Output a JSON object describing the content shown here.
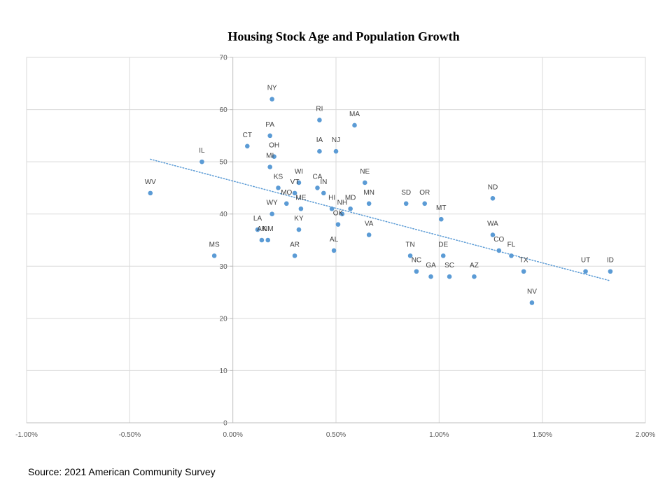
{
  "title": "Housing Stock Age and Population Growth",
  "source": "Source: 2021 American Community Survey",
  "chart_data": {
    "type": "scatter",
    "title": "Housing Stock Age and Population Growth",
    "xlabel": "",
    "ylabel": "",
    "xlim": [
      -0.01,
      0.02
    ],
    "ylim": [
      0,
      70
    ],
    "x_ticks": [
      -0.01,
      -0.005,
      0,
      0.005,
      0.01,
      0.015,
      0.02
    ],
    "x_tick_labels": [
      "-1.00%",
      "-0.50%",
      "0.00%",
      "0.50%",
      "1.00%",
      "1.50%",
      "2.00%"
    ],
    "y_ticks": [
      0,
      10,
      20,
      30,
      40,
      50,
      60,
      70
    ],
    "y_tick_labels": [
      "0",
      "10",
      "20",
      "30",
      "40",
      "50",
      "60",
      "70"
    ],
    "grid": true,
    "legend": "none",
    "point_color": "#5b9bd5",
    "trendline": {
      "type": "linear",
      "style": "dotted",
      "color": "#5b9bd5",
      "x": [
        -0.004,
        0.0183
      ],
      "y": [
        50.5,
        27.2
      ]
    },
    "points": [
      {
        "label": "NY",
        "x": 0.0019,
        "y": 62
      },
      {
        "label": "RI",
        "x": 0.0042,
        "y": 58
      },
      {
        "label": "MA",
        "x": 0.0059,
        "y": 57
      },
      {
        "label": "PA",
        "x": 0.0018,
        "y": 55
      },
      {
        "label": "CT",
        "x": 0.0007,
        "y": 53
      },
      {
        "label": "OH",
        "x": 0.002,
        "y": 51
      },
      {
        "label": "IA",
        "x": 0.0042,
        "y": 52
      },
      {
        "label": "NJ",
        "x": 0.005,
        "y": 52
      },
      {
        "label": "IL",
        "x": -0.0015,
        "y": 50
      },
      {
        "label": "MI",
        "x": 0.0018,
        "y": 49
      },
      {
        "label": "WI",
        "x": 0.0032,
        "y": 46
      },
      {
        "label": "CA",
        "x": 0.0041,
        "y": 45
      },
      {
        "label": "IN",
        "x": 0.0044,
        "y": 44
      },
      {
        "label": "KS",
        "x": 0.0022,
        "y": 45
      },
      {
        "label": "VT",
        "x": 0.003,
        "y": 44
      },
      {
        "label": "NE",
        "x": 0.0064,
        "y": 46
      },
      {
        "label": "WV",
        "x": -0.004,
        "y": 44
      },
      {
        "label": "MO",
        "x": 0.0026,
        "y": 42
      },
      {
        "label": "ME",
        "x": 0.0033,
        "y": 41
      },
      {
        "label": "HI",
        "x": 0.0048,
        "y": 41
      },
      {
        "label": "MD",
        "x": 0.0057,
        "y": 41
      },
      {
        "label": "MN",
        "x": 0.0066,
        "y": 42
      },
      {
        "label": "SD",
        "x": 0.0084,
        "y": 42
      },
      {
        "label": "OR",
        "x": 0.0093,
        "y": 42
      },
      {
        "label": "ND",
        "x": 0.0126,
        "y": 43
      },
      {
        "label": "WY",
        "x": 0.0019,
        "y": 40
      },
      {
        "label": "NH",
        "x": 0.0053,
        "y": 40
      },
      {
        "label": "MT",
        "x": 0.0101,
        "y": 39
      },
      {
        "label": "OK",
        "x": 0.0051,
        "y": 38
      },
      {
        "label": "LA",
        "x": 0.0012,
        "y": 37
      },
      {
        "label": "KY",
        "x": 0.0032,
        "y": 37
      },
      {
        "label": "AK",
        "x": 0.0014,
        "y": 35
      },
      {
        "label": "NM",
        "x": 0.0017,
        "y": 35
      },
      {
        "label": "VA",
        "x": 0.0066,
        "y": 36
      },
      {
        "label": "WA",
        "x": 0.0126,
        "y": 36
      },
      {
        "label": "AL",
        "x": 0.0049,
        "y": 33
      },
      {
        "label": "CO",
        "x": 0.0129,
        "y": 33
      },
      {
        "label": "MS",
        "x": -0.0009,
        "y": 32
      },
      {
        "label": "AR",
        "x": 0.003,
        "y": 32
      },
      {
        "label": "TN",
        "x": 0.0086,
        "y": 32
      },
      {
        "label": "DE",
        "x": 0.0102,
        "y": 32
      },
      {
        "label": "FL",
        "x": 0.0135,
        "y": 32
      },
      {
        "label": "NC",
        "x": 0.0089,
        "y": 29
      },
      {
        "label": "TX",
        "x": 0.0141,
        "y": 29
      },
      {
        "label": "UT",
        "x": 0.0171,
        "y": 29
      },
      {
        "label": "ID",
        "x": 0.0183,
        "y": 29
      },
      {
        "label": "GA",
        "x": 0.0096,
        "y": 28
      },
      {
        "label": "SC",
        "x": 0.0105,
        "y": 28
      },
      {
        "label": "AZ",
        "x": 0.0117,
        "y": 28
      },
      {
        "label": "NV",
        "x": 0.0145,
        "y": 23
      }
    ]
  }
}
